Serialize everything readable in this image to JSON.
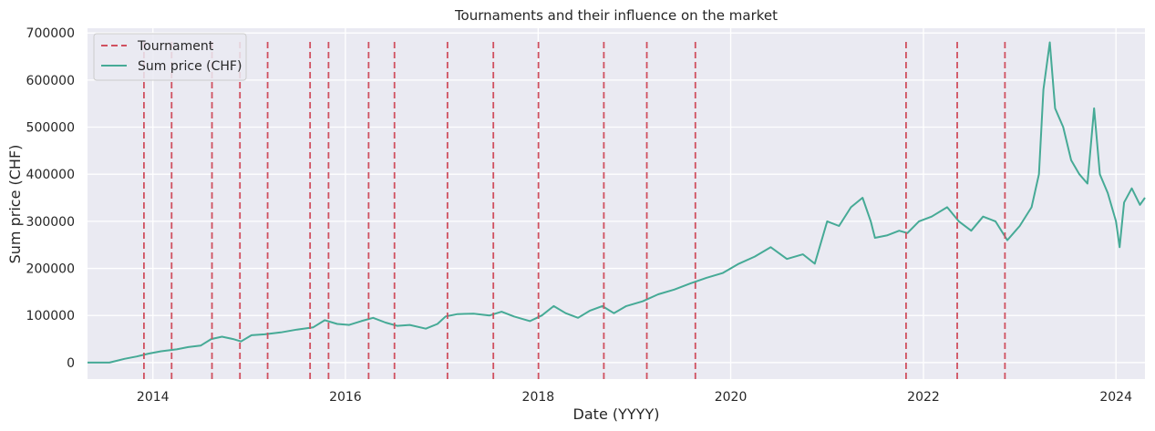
{
  "chart_data": {
    "type": "line",
    "title": "Tournaments and their influence on the market",
    "xlabel": "Date (YYYY)",
    "ylabel": "Sum price (CHF)",
    "xlim": [
      "2013-04-28",
      "2024-04-20"
    ],
    "ylim": [
      -35000,
      710000
    ],
    "x_ticks": [
      "2014",
      "2016",
      "2018",
      "2020",
      "2022",
      "2024"
    ],
    "y_ticks": [
      0,
      100000,
      200000,
      300000,
      400000,
      500000,
      600000,
      700000
    ],
    "grid": true,
    "legend": {
      "position": "top-left",
      "entries": [
        {
          "label": "Tournament",
          "color": "#d0505f",
          "style": "dashed"
        },
        {
          "label": "Sum price (CHF)",
          "color": "#46aa96",
          "style": "solid"
        }
      ]
    },
    "colors": {
      "background": "#eaeaf2",
      "grid": "#ffffff",
      "series": "#46aa96",
      "tournament": "#d0505f"
    },
    "tournaments": [
      "2013-11-28",
      "2014-03-13",
      "2014-08-13",
      "2014-11-27",
      "2015-03-12",
      "2015-08-20",
      "2015-10-29",
      "2016-03-29",
      "2016-07-05",
      "2017-01-22",
      "2017-07-15",
      "2018-01-02",
      "2018-09-07",
      "2019-02-17",
      "2019-08-20",
      "2021-10-27",
      "2022-05-09",
      "2022-11-06"
    ],
    "series": [
      {
        "name": "Sum price (CHF)",
        "points": [
          [
            "2013-04-28",
            0
          ],
          [
            "2013-07-20",
            0
          ],
          [
            "2013-09-15",
            8000
          ],
          [
            "2013-11-01",
            13000
          ],
          [
            "2013-12-15",
            19000
          ],
          [
            "2014-02-01",
            24000
          ],
          [
            "2014-04-01",
            28000
          ],
          [
            "2014-05-15",
            33000
          ],
          [
            "2014-07-01",
            36000
          ],
          [
            "2014-08-10",
            50000
          ],
          [
            "2014-09-20",
            55000
          ],
          [
            "2014-11-01",
            50000
          ],
          [
            "2014-12-01",
            45000
          ],
          [
            "2015-01-10",
            58000
          ],
          [
            "2015-03-01",
            60000
          ],
          [
            "2015-05-01",
            64000
          ],
          [
            "2015-07-01",
            70000
          ],
          [
            "2015-09-01",
            75000
          ],
          [
            "2015-10-15",
            90000
          ],
          [
            "2015-12-01",
            82000
          ],
          [
            "2016-01-15",
            80000
          ],
          [
            "2016-03-01",
            88000
          ],
          [
            "2016-04-15",
            95000
          ],
          [
            "2016-06-01",
            85000
          ],
          [
            "2016-07-15",
            78000
          ],
          [
            "2016-09-01",
            80000
          ],
          [
            "2016-11-01",
            72000
          ],
          [
            "2016-12-15",
            82000
          ],
          [
            "2017-01-15",
            98000
          ],
          [
            "2017-03-01",
            103000
          ],
          [
            "2017-05-01",
            104000
          ],
          [
            "2017-07-01",
            100000
          ],
          [
            "2017-08-15",
            108000
          ],
          [
            "2017-10-01",
            98000
          ],
          [
            "2017-12-01",
            88000
          ],
          [
            "2018-01-15",
            100000
          ],
          [
            "2018-03-01",
            120000
          ],
          [
            "2018-04-15",
            105000
          ],
          [
            "2018-06-01",
            95000
          ],
          [
            "2018-07-15",
            110000
          ],
          [
            "2018-09-01",
            120000
          ],
          [
            "2018-10-15",
            105000
          ],
          [
            "2018-12-01",
            120000
          ],
          [
            "2019-02-01",
            130000
          ],
          [
            "2019-04-01",
            145000
          ],
          [
            "2019-06-01",
            155000
          ],
          [
            "2019-08-01",
            168000
          ],
          [
            "2019-10-01",
            180000
          ],
          [
            "2019-12-01",
            190000
          ],
          [
            "2020-02-01",
            210000
          ],
          [
            "2020-04-01",
            225000
          ],
          [
            "2020-06-01",
            245000
          ],
          [
            "2020-08-01",
            220000
          ],
          [
            "2020-10-01",
            230000
          ],
          [
            "2020-11-15",
            210000
          ],
          [
            "2021-01-01",
            300000
          ],
          [
            "2021-02-15",
            290000
          ],
          [
            "2021-04-01",
            330000
          ],
          [
            "2021-05-15",
            350000
          ],
          [
            "2021-06-15",
            300000
          ],
          [
            "2021-07-01",
            265000
          ],
          [
            "2021-08-15",
            270000
          ],
          [
            "2021-10-01",
            280000
          ],
          [
            "2021-11-01",
            275000
          ],
          [
            "2021-12-15",
            300000
          ],
          [
            "2022-02-01",
            310000
          ],
          [
            "2022-04-01",
            330000
          ],
          [
            "2022-05-15",
            300000
          ],
          [
            "2022-07-01",
            280000
          ],
          [
            "2022-08-15",
            310000
          ],
          [
            "2022-10-01",
            300000
          ],
          [
            "2022-11-15",
            260000
          ],
          [
            "2023-01-01",
            290000
          ],
          [
            "2023-02-15",
            330000
          ],
          [
            "2023-03-15",
            400000
          ],
          [
            "2023-04-01",
            580000
          ],
          [
            "2023-04-25",
            680000
          ],
          [
            "2023-05-15",
            540000
          ],
          [
            "2023-06-15",
            500000
          ],
          [
            "2023-07-15",
            430000
          ],
          [
            "2023-08-15",
            400000
          ],
          [
            "2023-09-15",
            380000
          ],
          [
            "2023-10-10",
            540000
          ],
          [
            "2023-11-01",
            400000
          ],
          [
            "2023-12-01",
            360000
          ],
          [
            "2024-01-01",
            300000
          ],
          [
            "2024-01-15",
            245000
          ],
          [
            "2024-02-01",
            340000
          ],
          [
            "2024-03-01",
            370000
          ],
          [
            "2024-04-01",
            335000
          ],
          [
            "2024-04-20",
            350000
          ]
        ]
      }
    ]
  }
}
